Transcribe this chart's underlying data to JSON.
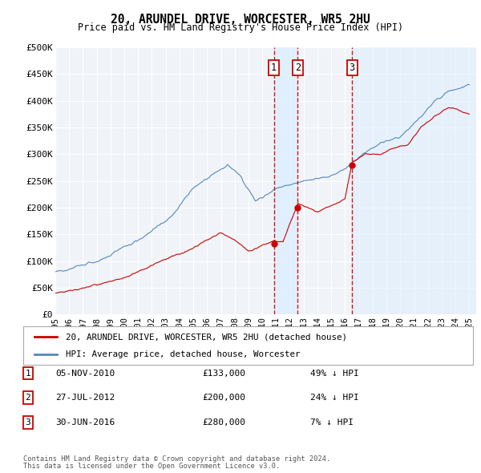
{
  "title": "20, ARUNDEL DRIVE, WORCESTER, WR5 2HU",
  "subtitle": "Price paid vs. HM Land Registry's House Price Index (HPI)",
  "ylim": [
    0,
    500000
  ],
  "xlim_start": 1995.0,
  "xlim_end": 2025.5,
  "yticks": [
    0,
    50000,
    100000,
    150000,
    200000,
    250000,
    300000,
    350000,
    400000,
    450000,
    500000
  ],
  "ytick_labels": [
    "£0",
    "£50K",
    "£100K",
    "£150K",
    "£200K",
    "£250K",
    "£300K",
    "£350K",
    "£400K",
    "£450K",
    "£500K"
  ],
  "xticks": [
    1995,
    1996,
    1997,
    1998,
    1999,
    2000,
    2001,
    2002,
    2003,
    2004,
    2005,
    2006,
    2007,
    2008,
    2009,
    2010,
    2011,
    2012,
    2013,
    2014,
    2015,
    2016,
    2017,
    2018,
    2019,
    2020,
    2021,
    2022,
    2023,
    2024,
    2025
  ],
  "property_color": "#cc0000",
  "hpi_color": "#5588bb",
  "fill_color": "#ddeeff",
  "sale_marker_color": "#cc0000",
  "dashed_line_color": "#cc0000",
  "sales": [
    {
      "label": "1",
      "date": "05-NOV-2010",
      "year": 2010.84,
      "price": 133000,
      "pct": "49%",
      "direction": "↓"
    },
    {
      "label": "2",
      "date": "27-JUL-2012",
      "year": 2012.57,
      "price": 200000,
      "pct": "24%",
      "direction": "↓"
    },
    {
      "label": "3",
      "date": "30-JUN-2016",
      "year": 2016.5,
      "price": 280000,
      "pct": "7%",
      "direction": "↓"
    }
  ],
  "legend_property": "20, ARUNDEL DRIVE, WORCESTER, WR5 2HU (detached house)",
  "legend_hpi": "HPI: Average price, detached house, Worcester",
  "footer1": "Contains HM Land Registry data © Crown copyright and database right 2024.",
  "footer2": "This data is licensed under the Open Government Licence v3.0.",
  "background_color": "#ffffff",
  "plot_bg_color": "#f0f4f8",
  "grid_color": "#ffffff"
}
